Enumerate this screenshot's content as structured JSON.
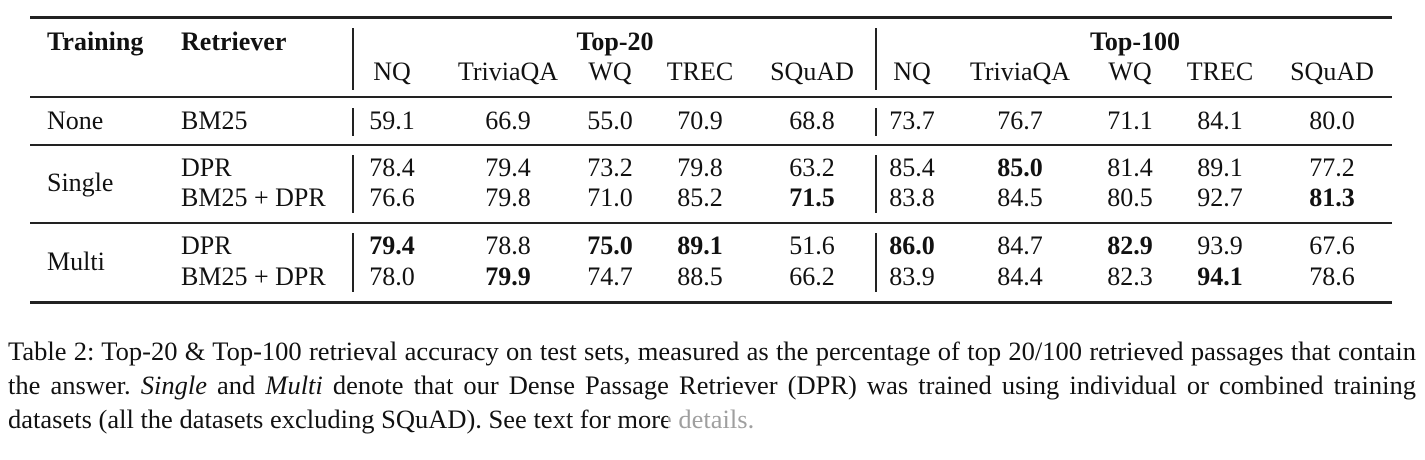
{
  "table": {
    "header": {
      "training": "Training",
      "retriever": "Retriever",
      "groups": [
        "Top-20",
        "Top-100"
      ],
      "datasets": [
        "NQ",
        "TriviaQA",
        "WQ",
        "TREC",
        "SQuAD",
        "NQ",
        "TriviaQA",
        "WQ",
        "TREC",
        "SQuAD"
      ]
    },
    "groups": [
      {
        "training": "None",
        "rows": [
          {
            "retriever": "BM25",
            "values": [
              "59.1",
              "66.9",
              "55.0",
              "70.9",
              "68.8",
              "73.7",
              "76.7",
              "71.1",
              "84.1",
              "80.0"
            ],
            "bold": []
          }
        ]
      },
      {
        "training": "Single",
        "rows": [
          {
            "retriever": "DPR",
            "values": [
              "78.4",
              "79.4",
              "73.2",
              "79.8",
              "63.2",
              "85.4",
              "85.0",
              "81.4",
              "89.1",
              "77.2"
            ],
            "bold": [
              6
            ]
          },
          {
            "retriever": "BM25 + DPR",
            "values": [
              "76.6",
              "79.8",
              "71.0",
              "85.2",
              "71.5",
              "83.8",
              "84.5",
              "80.5",
              "92.7",
              "81.3"
            ],
            "bold": [
              4,
              9
            ]
          }
        ]
      },
      {
        "training": "Multi",
        "rows": [
          {
            "retriever": "DPR",
            "values": [
              "79.4",
              "78.8",
              "75.0",
              "89.1",
              "51.6",
              "86.0",
              "84.7",
              "82.9",
              "93.9",
              "67.6"
            ],
            "bold": [
              0,
              2,
              3,
              5,
              7
            ]
          },
          {
            "retriever": "BM25 + DPR",
            "values": [
              "78.0",
              "79.9",
              "74.7",
              "88.5",
              "66.2",
              "83.9",
              "84.4",
              "82.3",
              "94.1",
              "78.6"
            ],
            "bold": [
              1,
              8
            ]
          }
        ]
      }
    ]
  },
  "caption": {
    "p1": "Table 2: Top-20 & Top-100 retrieval accuracy on test sets, measured as the percentage of top 20/100 retrieved passages that contain the answer. ",
    "single": "Single",
    "and": " and ",
    "multi": "Multi",
    "p2": " denote that our Dense Passage Retriever (DPR) was trained using individual or combined training datasets (all the datasets excluding SQuAD). See text for mor",
    "tail": "e details."
  }
}
